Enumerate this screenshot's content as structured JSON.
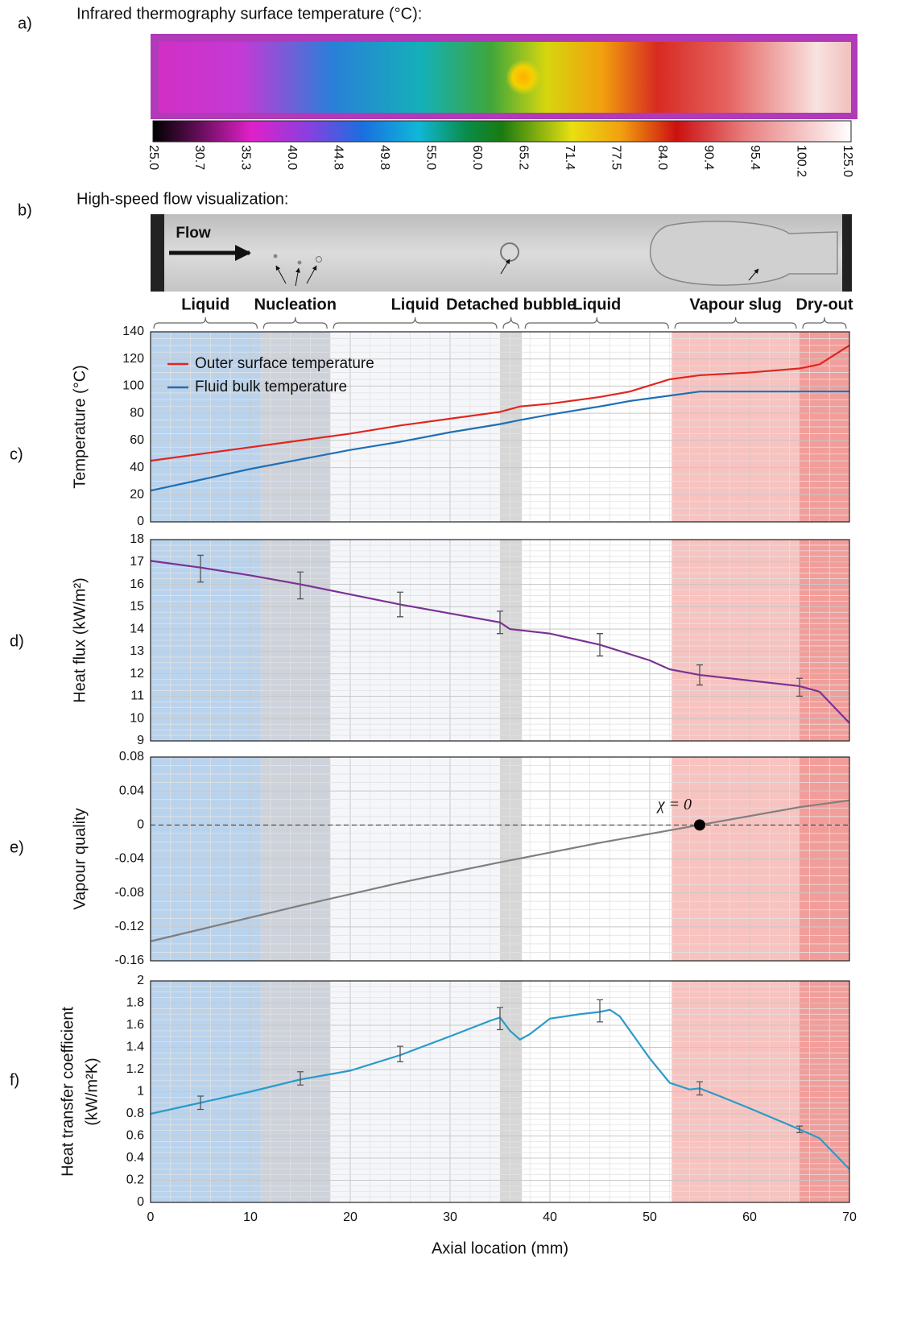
{
  "panel_labels": [
    "a)",
    "b)",
    "c)",
    "d)",
    "e)",
    "f)"
  ],
  "thermography": {
    "title": "Infrared thermography surface temperature (°C):",
    "colorbar_labels": [
      "25.0",
      "30.7",
      "35.3",
      "40.0",
      "44.8",
      "49.8",
      "55.0",
      "60.0",
      "65.2",
      "71.4",
      "77.5",
      "84.0",
      "90.4",
      "95.4",
      "100.2",
      "125.0"
    ]
  },
  "flow_visualization": {
    "title": "High-speed flow visualization:",
    "flow_label": "Flow"
  },
  "regions": [
    {
      "label": "Liquid",
      "span": [
        0,
        11
      ],
      "color": "#aecbea"
    },
    {
      "label": "Nucleation",
      "span": [
        11,
        18
      ],
      "color": "#c5cad5"
    },
    {
      "label": "Liquid",
      "span": [
        18,
        35
      ],
      "color": "#f3f5f9"
    },
    {
      "label": "Detached bubble",
      "span": [
        35,
        37.2
      ],
      "color": "#d0d0d0"
    },
    {
      "label": "Liquid",
      "span": [
        37.2,
        52.2
      ],
      "color": "#ffffff"
    },
    {
      "label": "Vapour slug",
      "span": [
        52.2,
        65
      ],
      "color": "#f6b8b5"
    },
    {
      "label": "Dry-out",
      "span": [
        65,
        70
      ],
      "color": "#ee8d8a"
    }
  ],
  "chart_data": [
    {
      "type": "line",
      "ylabel": [
        "Temperature (°C)"
      ],
      "xlim": [
        0,
        70
      ],
      "ylim": [
        0,
        140
      ],
      "yticks": [
        0,
        20,
        40,
        60,
        80,
        100,
        120,
        140
      ],
      "grid": true,
      "legend": "upper left",
      "x": [
        0,
        5,
        10,
        15,
        20,
        25,
        30,
        35,
        37,
        40,
        45,
        48,
        52,
        55,
        60,
        65,
        67,
        70
      ],
      "series": [
        {
          "name": "Outer surface temperature",
          "color": "#e0261f",
          "values": [
            45,
            50,
            55,
            60,
            65,
            71,
            76,
            81,
            85,
            87,
            92,
            96,
            105,
            108,
            110,
            113,
            116,
            130
          ]
        },
        {
          "name": "Fluid bulk temperature",
          "color": "#1f6fb5",
          "values": [
            23,
            31,
            39,
            46,
            53,
            59,
            66,
            72,
            75,
            79,
            85,
            89,
            93,
            96,
            96,
            96,
            96,
            96
          ]
        }
      ]
    },
    {
      "type": "line",
      "ylabel": [
        "Heat flux (kW/m²)"
      ],
      "xlim": [
        0,
        70
      ],
      "ylim": [
        9,
        18
      ],
      "yticks": [
        9,
        10,
        11,
        12,
        13,
        14,
        15,
        16,
        17,
        18
      ],
      "grid": true,
      "x": [
        0,
        5,
        10,
        15,
        20,
        25,
        30,
        35,
        36,
        40,
        45,
        50,
        52,
        55,
        60,
        65,
        67,
        70
      ],
      "series": [
        {
          "color": "#7b3294",
          "values": [
            17.05,
            16.75,
            16.4,
            16.0,
            15.55,
            15.1,
            14.7,
            14.3,
            14.0,
            13.8,
            13.3,
            12.6,
            12.2,
            11.95,
            11.7,
            11.45,
            11.2,
            9.8
          ]
        }
      ],
      "errorbars": {
        "x": [
          5,
          15,
          25,
          35,
          45,
          55,
          65
        ],
        "values": [
          16.7,
          15.95,
          15.1,
          14.3,
          13.3,
          11.95,
          11.4
        ],
        "errors": [
          0.6,
          0.6,
          0.55,
          0.5,
          0.5,
          0.45,
          0.4
        ]
      }
    },
    {
      "type": "line",
      "ylabel": [
        "Vapour quality"
      ],
      "xlim": [
        0,
        70
      ],
      "ylim": [
        -0.16,
        0.08
      ],
      "yticks": [
        -0.16,
        -0.12,
        -0.08,
        -0.04,
        0,
        0.04,
        0.08
      ],
      "grid": true,
      "x": [
        0,
        5,
        15,
        25,
        35,
        45,
        55,
        65,
        70
      ],
      "series": [
        {
          "color": "#7f7f7f",
          "values": [
            -0.137,
            -0.123,
            -0.095,
            -0.068,
            -0.044,
            -0.021,
            0,
            0.021,
            0.029
          ]
        }
      ],
      "annotation": {
        "text": "χ = 0",
        "x": 55,
        "y": 0
      }
    },
    {
      "type": "line",
      "ylabel": [
        "Heat transfer coefficient",
        "(kW/m²K)"
      ],
      "xlabel": "Axial location (mm)",
      "xlim": [
        0,
        70
      ],
      "xticks": [
        0,
        10,
        20,
        30,
        40,
        50,
        60,
        70
      ],
      "ylim": [
        0,
        2
      ],
      "yticks": [
        0,
        0.2,
        0.4,
        0.6,
        0.8,
        1,
        1.2,
        1.4,
        1.6,
        1.8,
        2
      ],
      "grid": true,
      "x": [
        0,
        5,
        10,
        15,
        20,
        25,
        30,
        34,
        35,
        36,
        37,
        38,
        40,
        43,
        45,
        46,
        47,
        50,
        52,
        54,
        55,
        57,
        60,
        65,
        67,
        70
      ],
      "series": [
        {
          "color": "#2a9bc9",
          "values": [
            0.8,
            0.9,
            1.0,
            1.11,
            1.19,
            1.33,
            1.5,
            1.64,
            1.67,
            1.55,
            1.47,
            1.52,
            1.66,
            1.7,
            1.72,
            1.74,
            1.68,
            1.3,
            1.08,
            1.02,
            1.03,
            0.96,
            0.85,
            0.66,
            0.58,
            0.3
          ]
        }
      ],
      "errorbars": {
        "x": [
          5,
          15,
          25,
          35,
          45,
          55,
          65
        ],
        "values": [
          0.9,
          1.12,
          1.34,
          1.66,
          1.73,
          1.03,
          0.66
        ],
        "errors": [
          0.06,
          0.06,
          0.07,
          0.1,
          0.1,
          0.06,
          0.03
        ]
      }
    }
  ]
}
